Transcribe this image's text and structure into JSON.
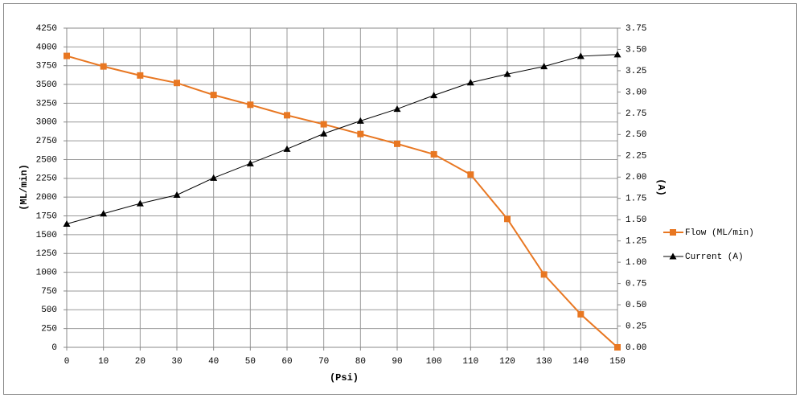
{
  "chart_data": {
    "type": "line",
    "x_label": "(Psi)",
    "y_label": "(ML/min)",
    "y2_label": "(A)",
    "x": [
      0,
      10,
      20,
      30,
      40,
      50,
      60,
      70,
      80,
      90,
      100,
      110,
      120,
      130,
      140,
      150
    ],
    "series": [
      {
        "name": "Flow (ML/min)",
        "color": "#e87722",
        "marker": "square",
        "values": [
          3880,
          3740,
          3620,
          3520,
          3360,
          3230,
          3090,
          2970,
          2840,
          2710,
          2570,
          2300,
          1710,
          970,
          440,
          0
        ]
      },
      {
        "name": "Current (A)",
        "color": "#000000",
        "marker": "triangle",
        "axis": "y2",
        "values": [
          1.45,
          1.57,
          1.69,
          1.79,
          1.99,
          2.16,
          2.33,
          2.51,
          2.66,
          2.8,
          2.96,
          3.11,
          3.21,
          3.3,
          3.42,
          3.44
        ]
      }
    ],
    "xlim": [
      0,
      150
    ],
    "xticks": [
      0,
      10,
      20,
      30,
      40,
      50,
      60,
      70,
      80,
      90,
      100,
      110,
      120,
      130,
      140,
      150
    ],
    "ylim": [
      0,
      4250
    ],
    "yticks": [
      0,
      250,
      500,
      750,
      1000,
      1250,
      1500,
      1750,
      2000,
      2250,
      2500,
      2750,
      3000,
      3250,
      3500,
      3750,
      4000,
      4250
    ],
    "y2lim": [
      0,
      3.75
    ],
    "y2ticks": [
      {
        "value": 0,
        "label": "0.00"
      },
      0.25,
      {
        "value": 0.5,
        "label": "0.50"
      },
      0.75,
      {
        "value": 1,
        "label": "1.00"
      },
      1.25,
      {
        "value": 1.5,
        "label": "1.50"
      },
      1.75,
      {
        "value": 2,
        "label": "2.00"
      },
      2.25,
      {
        "value": 2.5,
        "label": "2.50"
      },
      2.75,
      {
        "value": 3,
        "label": "3.00"
      },
      3.25,
      {
        "value": 3.5,
        "label": "3.50"
      },
      3.75
    ],
    "grid": true,
    "legend": "right"
  }
}
